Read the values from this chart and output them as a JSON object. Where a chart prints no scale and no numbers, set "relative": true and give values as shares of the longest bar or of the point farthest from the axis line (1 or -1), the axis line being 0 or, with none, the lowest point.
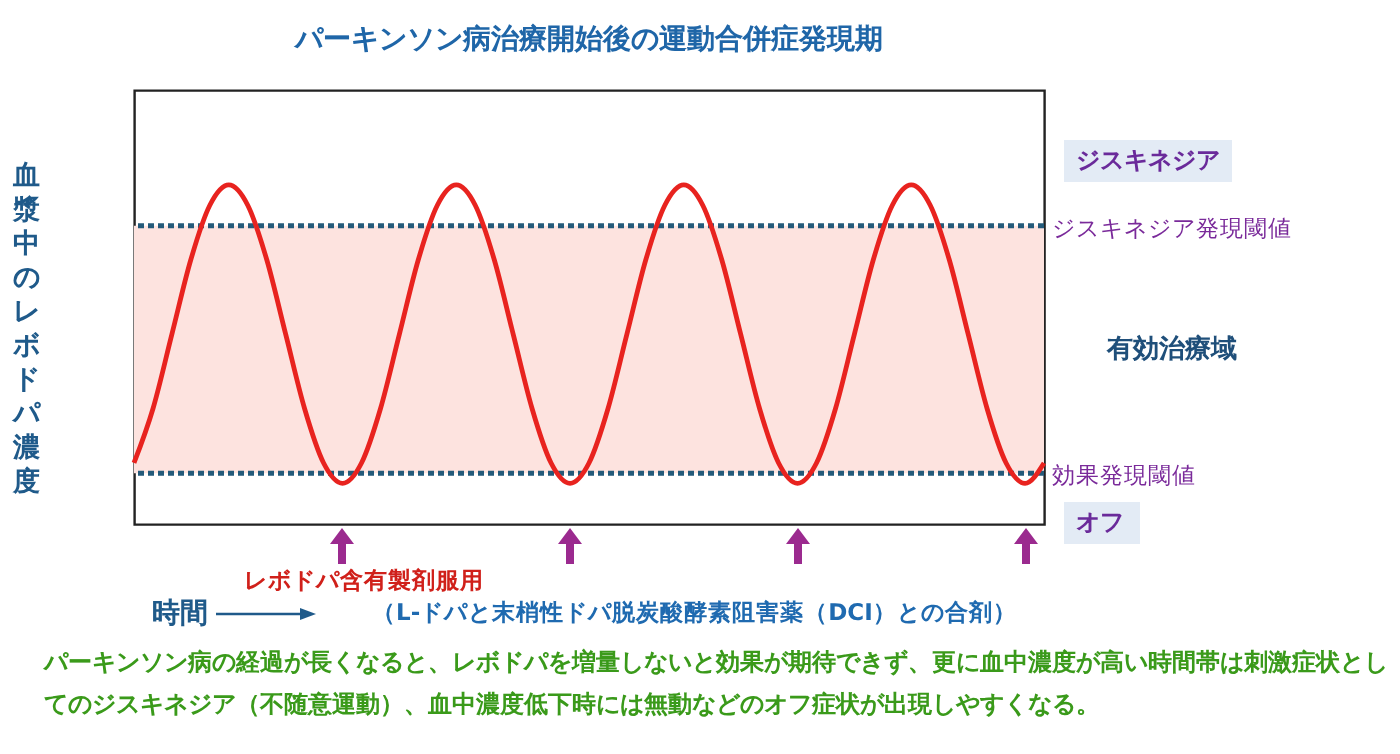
{
  "chart_data": {
    "type": "line",
    "relative": true,
    "title": "パーキンソン病治療開始後の運動合併症発現期",
    "ylabel": "血漿中のレボドパ濃度",
    "xlabel": "時間",
    "categories": [
      null,
      null,
      null,
      null,
      null,
      null,
      null,
      null,
      null,
      null,
      null,
      null,
      null,
      null,
      null,
      null,
      null,
      null,
      null,
      null,
      null,
      null,
      null,
      null,
      null,
      null,
      null,
      null,
      null,
      null,
      null,
      null,
      null,
      null,
      null,
      null,
      null,
      null,
      null,
      null,
      null,
      null,
      null,
      null,
      null,
      null,
      null,
      null,
      null
    ],
    "series": [
      {
        "color": "#e8231f",
        "values": [
          0.18,
          0.34,
          0.56,
          0.78,
          0.94,
          1.0,
          0.94,
          0.78,
          0.56,
          0.34,
          0.18,
          0.12,
          0.18,
          0.34,
          0.56,
          0.78,
          0.94,
          1.0,
          0.94,
          0.78,
          0.56,
          0.34,
          0.18,
          0.12,
          0.18,
          0.34,
          0.56,
          0.78,
          0.94,
          1.0,
          0.94,
          0.78,
          0.56,
          0.34,
          0.18,
          0.12,
          0.18,
          0.34,
          0.56,
          0.78,
          0.94,
          1.0,
          0.94,
          0.78,
          0.56,
          0.34,
          0.18,
          0.12,
          0.18
        ]
      }
    ],
    "ref_lines": [
      {
        "axis": "y",
        "value": 0.88,
        "label": "ジスキネジア発現閾値",
        "color": "#245a7a",
        "line_style": "dashed"
      },
      {
        "axis": "y",
        "value": 0.15,
        "label": "効果発現閾値",
        "color": "#245a7a",
        "line_style": "dashed"
      }
    ],
    "bands": [
      {
        "axis": "y",
        "from": 0.15,
        "to": 0.88,
        "label": "有効治療域",
        "color": "#fde3df"
      }
    ],
    "annotations": [
      "ジスキネジア",
      "オフ",
      "レボドパ含有製剤服用",
      "（L-ドパと末梢性ドパ脱炭酸酵素阻害薬（DCI）との合剤）",
      "パーキンソン病の経過が長くなると、レボドパを増量しないと効果が期待できず、更に血中濃度が高い時間帯は刺激症状としてのジスキネジア（不随意運動）、血中濃度低下時には無動などのオフ症状が出現しやすくなる。"
    ],
    "marker": "none",
    "line_style": "solid"
  }
}
